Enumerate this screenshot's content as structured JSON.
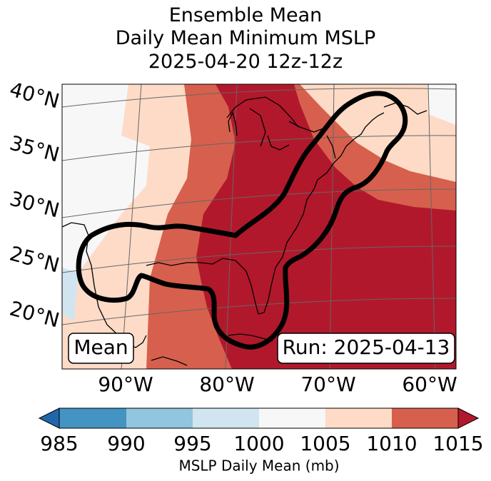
{
  "title": {
    "line1": "Ensemble Mean",
    "line2": "Daily Mean Minimum MSLP",
    "line3": "2025-04-20 12z-12z"
  },
  "map": {
    "lat_labels": [
      "40°N",
      "35°N",
      "30°N",
      "25°N",
      "20°N"
    ],
    "lon_labels": [
      "90°W",
      "80°W",
      "70°W",
      "60°W"
    ],
    "badge_left": "Mean",
    "badge_right": "Run: 2025-04-13",
    "colors": {
      "c985": "#2166ac",
      "c990": "#4393c3",
      "c995": "#92c5de",
      "c1000": "#d1e5f0",
      "c1005": "#f7f7f7",
      "c1010": "#fddbc7",
      "c1015": "#d6604d",
      "cmax": "#b2182b"
    }
  },
  "colorbar": {
    "ticks": [
      "985",
      "990",
      "995",
      "1000",
      "1005",
      "1010",
      "1015"
    ],
    "label": "MSLP Daily Mean (mb)"
  }
}
